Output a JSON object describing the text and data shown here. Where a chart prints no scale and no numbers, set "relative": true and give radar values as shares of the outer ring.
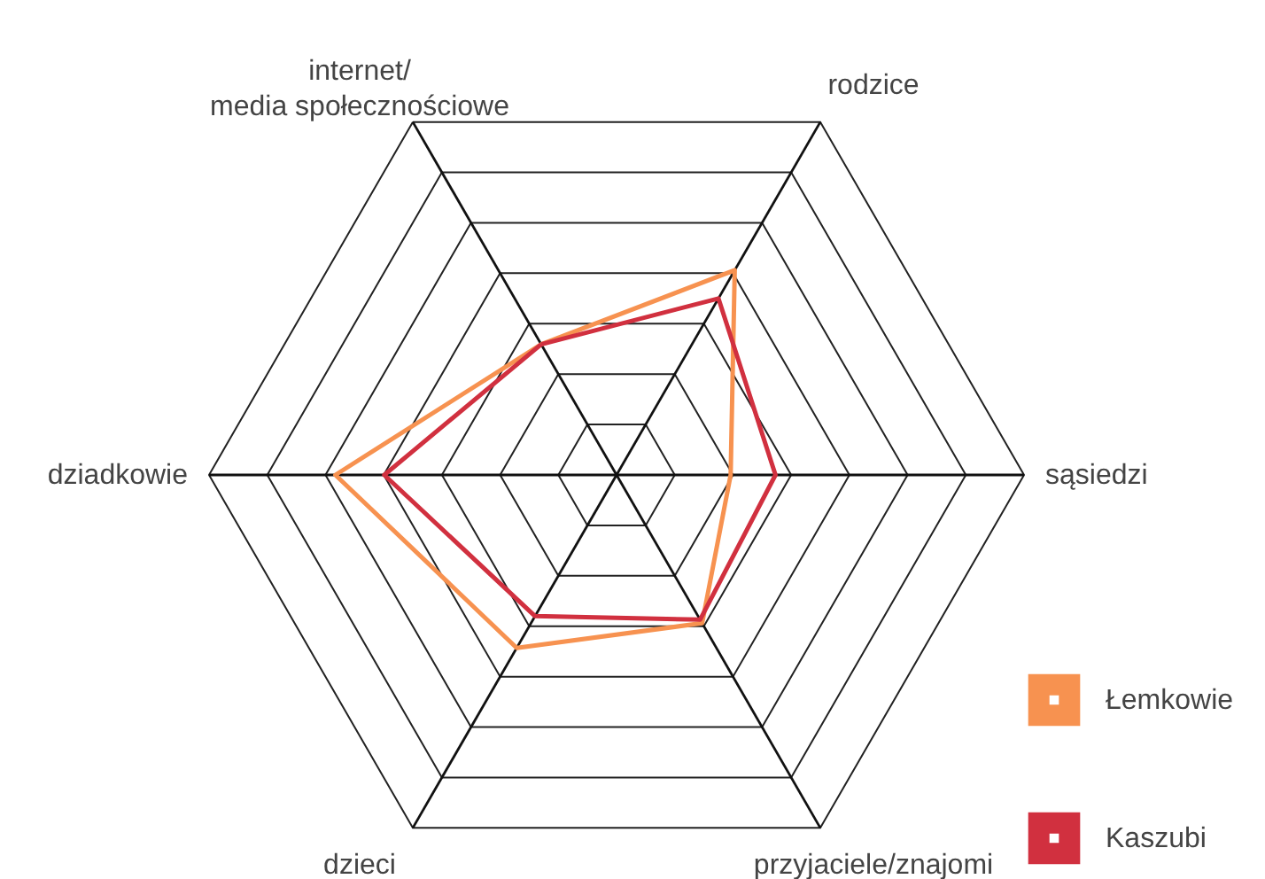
{
  "chart_data": {
    "type": "radar",
    "relative": true,
    "grid": true,
    "legend": "bottom right",
    "categories": [
      "internet/\nmedia społecznościowe",
      "rodzice",
      "sąsiedzi",
      "przyjaciele/znajomi",
      "dzieci",
      "dziadkowie"
    ],
    "series": [
      {
        "name": "Łemkowie",
        "color": "#f79250",
        "values": [
          0.37,
          0.58,
          0.28,
          0.42,
          0.49,
          0.69
        ]
      },
      {
        "name": "Kaszubi",
        "color": "#d1303f",
        "values": [
          0.37,
          0.5,
          0.39,
          0.41,
          0.4,
          0.57
        ]
      }
    ]
  }
}
